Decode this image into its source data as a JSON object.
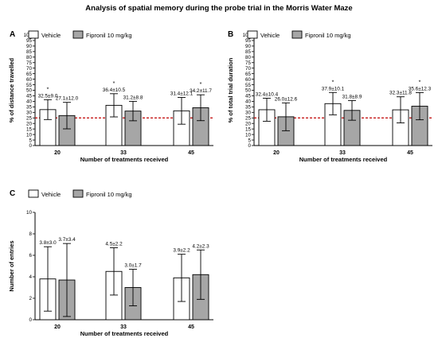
{
  "title": "Analysis of spatial memory during the probe trial in the Morris Water Maze",
  "colors": {
    "vehicle": "#ffffff",
    "fipronil": "#a6a6a6",
    "reference_line": "#c00000"
  },
  "legend": [
    "Vehicle",
    "Fipronil 10 mg/kg"
  ],
  "chart_data": [
    {
      "panel": "A",
      "type": "bar",
      "xlabel": "Number of treatments received",
      "ylabel": "% of distance travelled",
      "ylim": [
        0,
        100
      ],
      "yticks": [
        0,
        5,
        10,
        15,
        20,
        25,
        30,
        35,
        40,
        45,
        50,
        55,
        60,
        65,
        70,
        75,
        80,
        85,
        90,
        95,
        100
      ],
      "categories": [
        "20",
        "33",
        "45"
      ],
      "reference_line": 25,
      "series": [
        {
          "name": "Vehicle",
          "values": [
            32.5,
            36.4,
            31.4
          ],
          "errors": [
            9.0,
            10.5,
            12.1
          ],
          "labels": [
            "32.5±9.0",
            "36.4±10.5",
            "31.4±12.1"
          ],
          "significance": [
            "*",
            "*",
            ""
          ]
        },
        {
          "name": "Fipronil 10 mg/kg",
          "values": [
            27.1,
            31.2,
            34.2
          ],
          "errors": [
            12.0,
            8.8,
            11.7
          ],
          "labels": [
            "27.1±12.0",
            "31.2±8.8",
            "34.2±11.7"
          ],
          "significance": [
            "",
            "",
            "*"
          ]
        }
      ]
    },
    {
      "panel": "B",
      "type": "bar",
      "xlabel": "Number of treatments received",
      "ylabel": "% of total trial duration",
      "ylim": [
        0,
        100
      ],
      "yticks": [
        0,
        5,
        10,
        15,
        20,
        25,
        30,
        35,
        40,
        45,
        50,
        55,
        60,
        65,
        70,
        75,
        80,
        85,
        90,
        95,
        100
      ],
      "categories": [
        "20",
        "33",
        "45"
      ],
      "reference_line": 25,
      "series": [
        {
          "name": "Vehicle",
          "values": [
            32.4,
            37.9,
            32.3
          ],
          "errors": [
            10.4,
            10.1,
            11.8
          ],
          "labels": [
            "32.4±10.4",
            "37.9±10.1",
            "32.3±11.8"
          ],
          "significance": [
            "",
            "*",
            ""
          ]
        },
        {
          "name": "Fipronil 10 mg/kg",
          "values": [
            26.0,
            31.8,
            35.6
          ],
          "errors": [
            12.6,
            8.9,
            12.3
          ],
          "labels": [
            "26.0±12.6",
            "31.8±8.9",
            "35.6±12.3"
          ],
          "significance": [
            "",
            "",
            "*"
          ]
        }
      ]
    },
    {
      "panel": "C",
      "type": "bar",
      "xlabel": "Number of treatments received",
      "ylabel": "Number of entries",
      "ylim": [
        0,
        10
      ],
      "yticks": [
        0,
        2,
        4,
        6,
        8,
        10
      ],
      "categories": [
        "20",
        "33",
        "45"
      ],
      "reference_line": null,
      "series": [
        {
          "name": "Vehicle",
          "values": [
            3.8,
            4.5,
            3.9
          ],
          "errors": [
            3.0,
            2.2,
            2.2
          ],
          "labels": [
            "3.8±3.0",
            "4.5±2.2",
            "3.9±2.2"
          ],
          "significance": [
            "",
            "",
            ""
          ]
        },
        {
          "name": "Fipronil 10 mg/kg",
          "values": [
            3.7,
            3.0,
            4.2
          ],
          "errors": [
            3.4,
            1.7,
            2.3
          ],
          "labels": [
            "3.7±3.4",
            "3.0±1.7",
            "4.2±2.3"
          ],
          "significance": [
            "",
            "",
            ""
          ]
        }
      ]
    }
  ]
}
